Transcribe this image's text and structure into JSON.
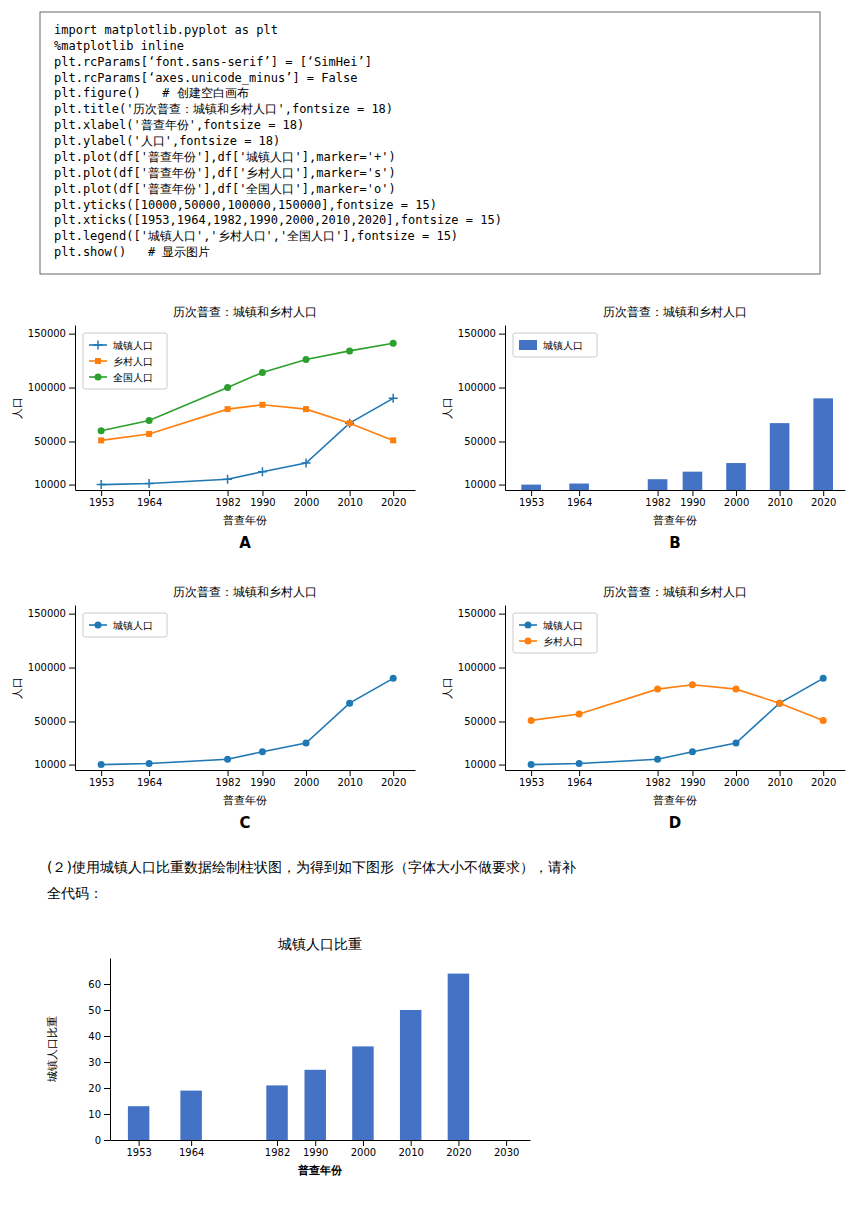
{
  "chart_data": [
    {
      "type": "line",
      "title": "历次普查：城镇和乡村人口",
      "subtitle": "A",
      "xlabel": "普查年份",
      "ylabel": "人口",
      "x": [
        1953,
        1964,
        1982,
        1990,
        2000,
        2010,
        2020
      ],
      "series": [
        {
          "name": "城镇人口",
          "color": "#1f77b4",
          "marker": "plus",
          "values": [
            10000,
            11000,
            15000,
            22000,
            30000,
            67000,
            90000
          ]
        },
        {
          "name": "乡村人口",
          "color": "#ff7f0e",
          "marker": "square",
          "values": [
            51000,
            57000,
            80000,
            84000,
            80000,
            67000,
            51000
          ]
        },
        {
          "name": "全国人口",
          "color": "#2ca02c",
          "marker": "circle",
          "values": [
            60000,
            69500,
            100000,
            114000,
            126000,
            134000,
            141000
          ]
        }
      ],
      "xlim": [
        1947,
        2025
      ],
      "ylim": [
        5000,
        158000
      ],
      "xticks": [
        1953,
        1964,
        1982,
        1990,
        2000,
        2010,
        2020
      ],
      "yticks": [
        10000,
        50000,
        100000,
        150000
      ],
      "legend": "upper left",
      "annotations": [
        "import matplotlib.pyplot as plt",
        "%matplotlib inline",
        "plt.rcParams[‘font.sans-serif’] = [‘SimHei’]",
        "plt.rcParams[‘axes.unicode_minus’] = False",
        "plt.figure()   # 创建空白画布",
        "plt.title('历次普查：城镇和乡村人口',fontsize = 18)",
        "plt.xlabel('普查年份',fontsize = 18)",
        "plt.ylabel('人口',fontsize = 18)",
        "plt.plot(df['普查年份'],df['城镇人口'],marker='+')",
        "plt.plot(df['普查年份'],df['乡村人口'],marker='s')",
        "plt.plot(df['普查年份'],df['全国人口'],marker='o')",
        "plt.yticks([10000,50000,100000,150000],fontsize = 15)",
        "plt.xticks([1953,1964,1982,1990,2000,2010,2020],fontsize = 15)",
        "plt.legend(['城镇人口','乡村人口','全国人口'],fontsize = 15)",
        "plt.show()   # 显示图片"
      ]
    },
    {
      "type": "bar",
      "title": "历次普查：城镇和乡村人口",
      "subtitle": "B",
      "xlabel": "普查年份",
      "ylabel": "人口",
      "x": [
        1953,
        1964,
        1982,
        1990,
        2000,
        2010,
        2020
      ],
      "series": [
        {
          "name": "城镇人口",
          "color": "#4472C4",
          "values": [
            10000,
            11000,
            15000,
            22000,
            30000,
            67000,
            90000
          ]
        }
      ],
      "xlim": [
        1947,
        2025
      ],
      "ylim": [
        5000,
        158000
      ],
      "xticks": [
        1953,
        1964,
        1982,
        1990,
        2000,
        2010,
        2020
      ],
      "yticks": [
        10000,
        50000,
        100000,
        150000
      ],
      "legend": "upper left"
    },
    {
      "type": "line",
      "title": "历次普查：城镇和乡村人口",
      "subtitle": "C",
      "xlabel": "普查年份",
      "ylabel": "人口",
      "x": [
        1953,
        1964,
        1982,
        1990,
        2000,
        2010,
        2020
      ],
      "series": [
        {
          "name": "城镇人口",
          "color": "#1f77b4",
          "marker": "circle",
          "values": [
            10000,
            11000,
            15000,
            22000,
            30000,
            67000,
            90000
          ]
        }
      ],
      "xlim": [
        1947,
        2025
      ],
      "ylim": [
        5000,
        158000
      ],
      "xticks": [
        1953,
        1964,
        1982,
        1990,
        2000,
        2010,
        2020
      ],
      "yticks": [
        10000,
        50000,
        100000,
        150000
      ],
      "legend": "upper left"
    },
    {
      "type": "line",
      "title": "历次普查：城镇和乡村人口",
      "subtitle": "D",
      "xlabel": "普查年份",
      "ylabel": "人口",
      "x": [
        1953,
        1964,
        1982,
        1990,
        2000,
        2010,
        2020
      ],
      "series": [
        {
          "name": "城镇人口",
          "color": "#1f77b4",
          "marker": "circle",
          "values": [
            10000,
            11000,
            15000,
            22000,
            30000,
            67000,
            90000
          ]
        },
        {
          "name": "乡村人口",
          "color": "#ff7f0e",
          "marker": "circle",
          "values": [
            51000,
            57000,
            80000,
            84000,
            80000,
            67000,
            51000
          ]
        }
      ],
      "xlim": [
        1947,
        2025
      ],
      "ylim": [
        5000,
        158000
      ],
      "xticks": [
        1953,
        1964,
        1982,
        1990,
        2000,
        2010,
        2020
      ],
      "yticks": [
        10000,
        50000,
        100000,
        150000
      ],
      "legend": "upper left"
    },
    {
      "type": "bar",
      "title": "城镇人口比重",
      "xlabel": "普查年份",
      "ylabel": "城镇人口比重",
      "x": [
        1953,
        1964,
        1982,
        1990,
        2000,
        2010,
        2020
      ],
      "values": [
        13.0,
        19.0,
        21.0,
        27.0,
        36.0,
        50.0,
        64.0
      ],
      "color": "#4472C4",
      "xlim": [
        1947,
        2035
      ],
      "ylim": [
        0,
        70
      ],
      "xticks": [
        1953,
        1964,
        1982,
        1990,
        2000,
        2010,
        2020,
        2030
      ],
      "yticks": [
        0,
        10,
        20,
        30,
        40,
        50,
        60
      ],
      "annotations": [
        "(２)使用城镇人口比重数据绘制柱状图，为得到如下图形（字体大小不做要求），请补",
        "全代码："
      ]
    }
  ]
}
